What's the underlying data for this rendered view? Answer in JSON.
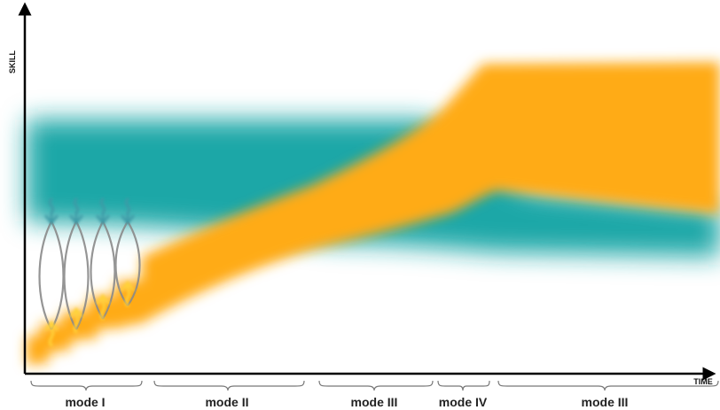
{
  "axes": {
    "y_label": "SKILL",
    "x_label": "TIME"
  },
  "modes": [
    {
      "label": "mode I"
    },
    {
      "label": "mode II"
    },
    {
      "label": "mode III"
    },
    {
      "label": "mode IV"
    },
    {
      "label": "mode III"
    }
  ],
  "colors": {
    "teal_band": "#1aa7a7",
    "orange_band": "#ffab17",
    "arrow_teal": "#3d9aa6",
    "arrow_yellow": "#ffd23a",
    "oscillation": "#8a8a8a",
    "axis": "#000000"
  }
}
